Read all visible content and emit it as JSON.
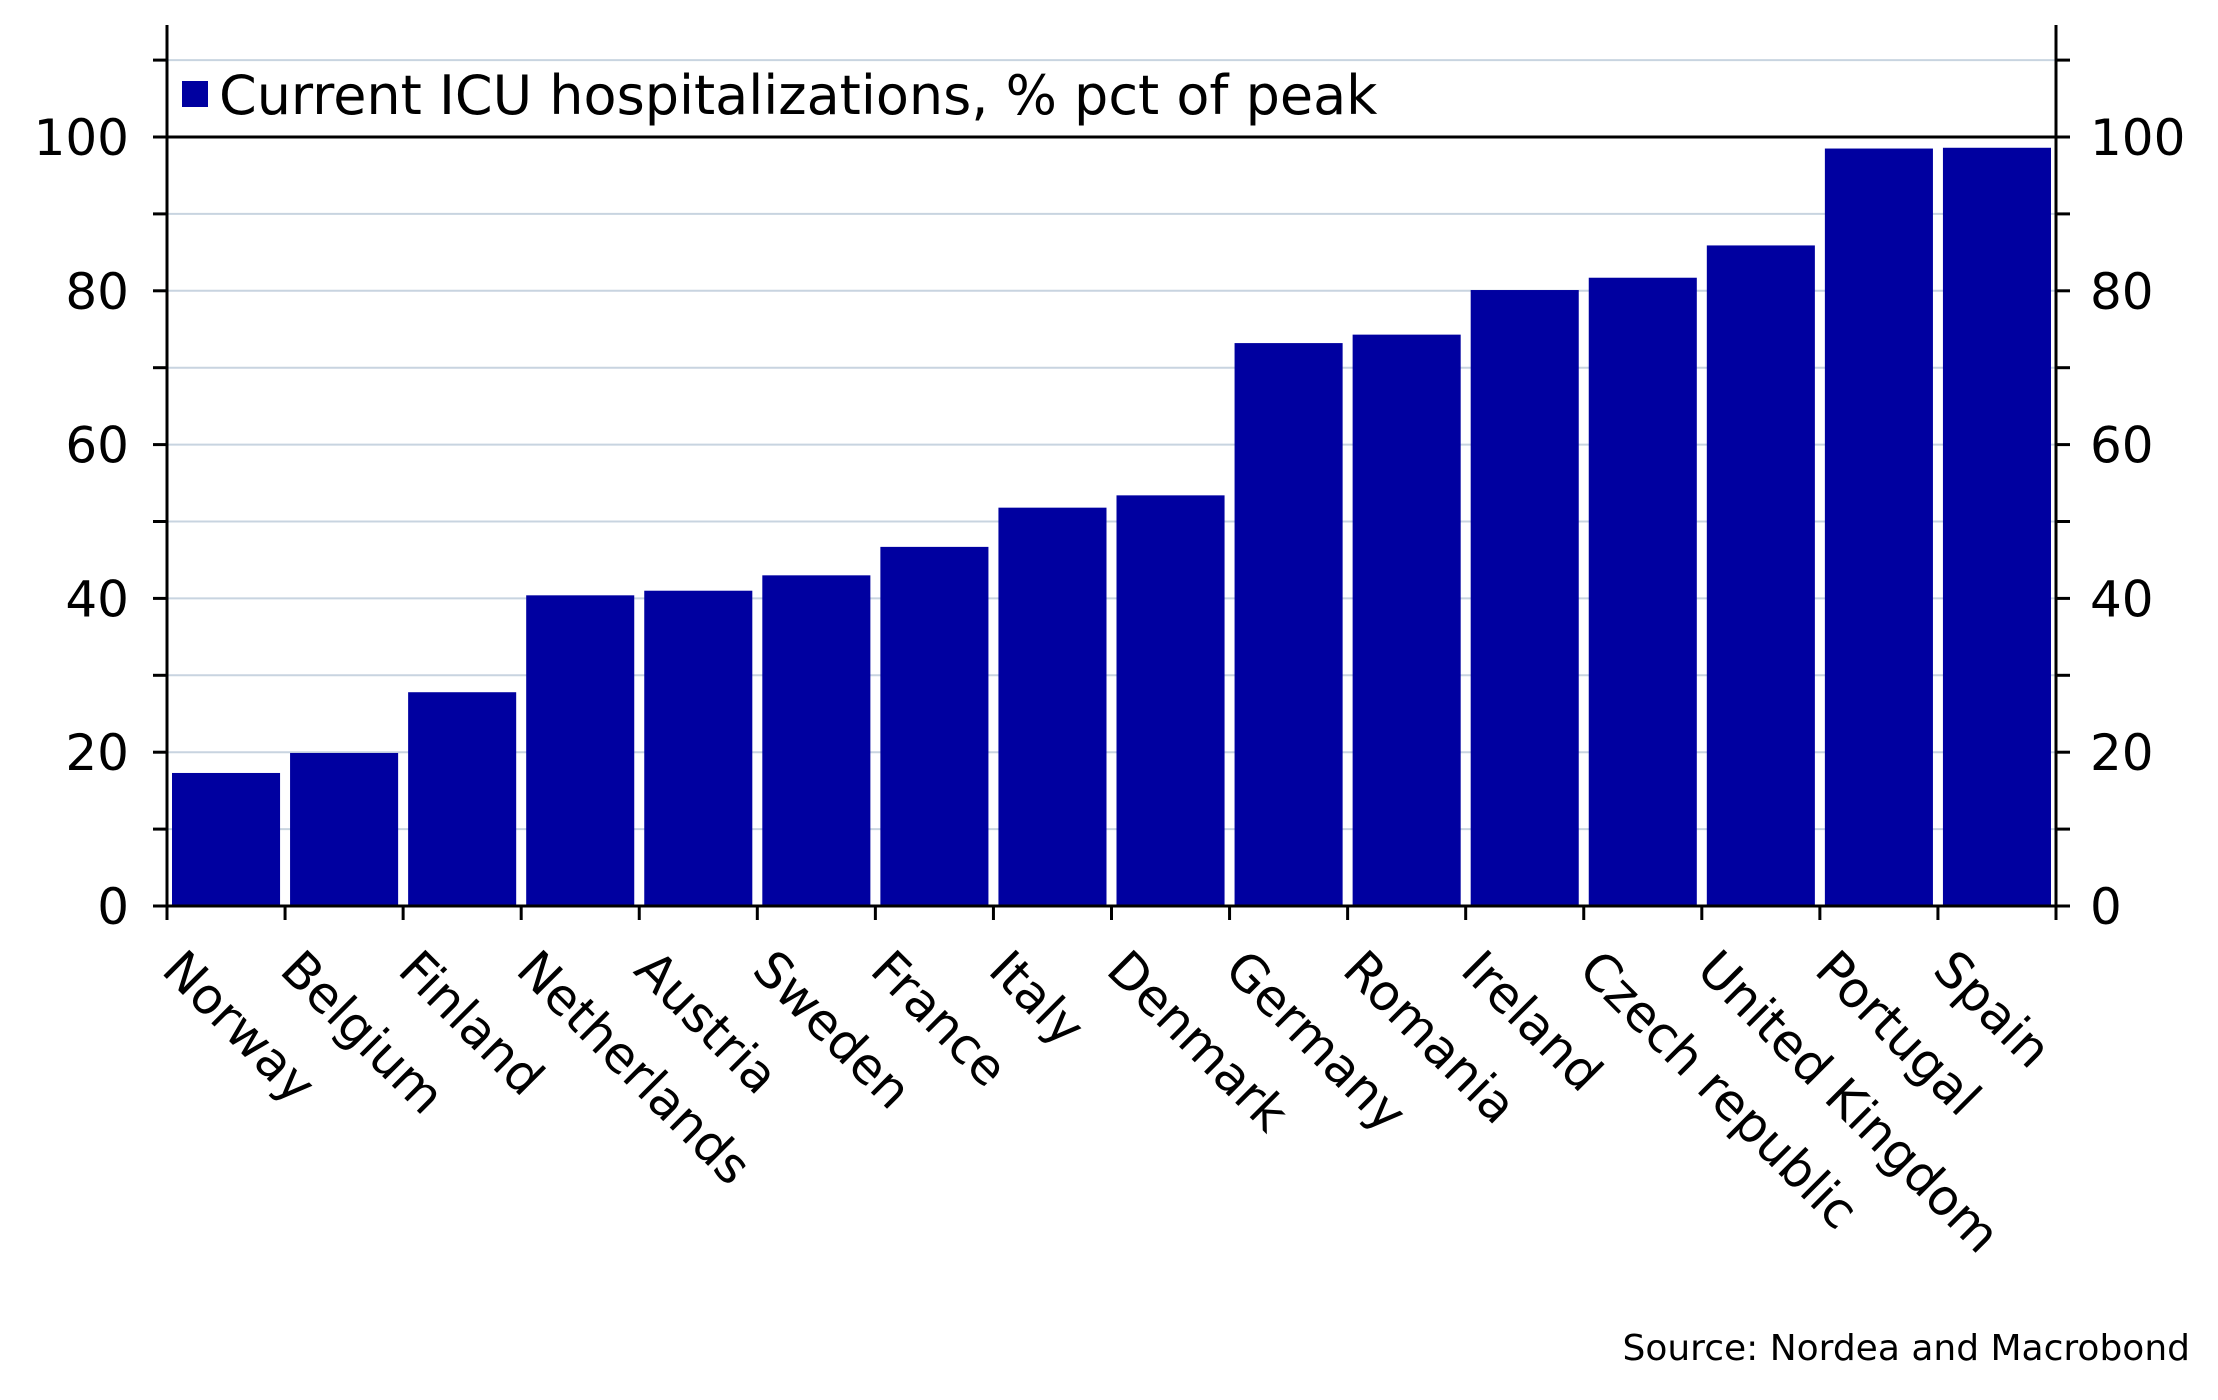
{
  "chart_data": {
    "type": "bar",
    "categories": [
      "Norway",
      "Belgium",
      "Finland",
      "Netherlands",
      "Austria",
      "Sweden",
      "France",
      "Italy",
      "Denmark",
      "Germany",
      "Romania",
      "Ireland",
      "Czech republic",
      "United Kingdom",
      "Portugal",
      "Spain"
    ],
    "series": [
      {
        "name": "Current ICU hospitalizations, % pct of peak",
        "color": "#0000a0",
        "values": [
          17.3,
          19.9,
          27.8,
          40.4,
          41.0,
          43.0,
          46.7,
          51.8,
          53.4,
          73.2,
          74.3,
          80.1,
          81.7,
          85.9,
          98.5,
          98.6
        ]
      }
    ],
    "ylim": [
      0,
      100
    ],
    "yticks": [
      0,
      20,
      40,
      60,
      80,
      100
    ],
    "ytick_labels": [
      "0",
      "20",
      "40",
      "60",
      "80",
      "100"
    ],
    "minor_yticks": [
      10,
      30,
      50,
      70,
      90,
      110
    ],
    "xlabel": "",
    "ylabel": "",
    "secondary_y_axis": true,
    "grid": true,
    "grid_color": "#c8d4e0",
    "legend_position": "top-left",
    "source": "Source: Nordea and Macrobond"
  }
}
